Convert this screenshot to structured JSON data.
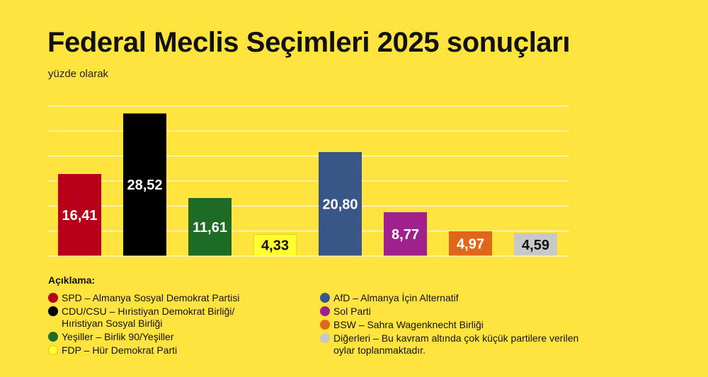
{
  "title": "Federal Meclis Seçimleri 2025 sonuçları",
  "subtitle": "yüzde olarak",
  "chart_data": {
    "type": "bar",
    "categories": [
      "SPD",
      "CDU/CSU",
      "Yeşiller",
      "FDP",
      "AfD",
      "Sol Parti",
      "BSW",
      "Diğerleri"
    ],
    "values": [
      16.41,
      28.52,
      11.61,
      4.33,
      20.8,
      8.77,
      4.97,
      4.59
    ],
    "data_labels": [
      "16,41",
      "28,52",
      "11,61",
      "4,33",
      "20,80",
      "8,77",
      "4,97",
      "4,59"
    ],
    "colors": [
      "#b8001a",
      "#000000",
      "#1e6b25",
      "#ffff33",
      "#385686",
      "#a0218e",
      "#e0671a",
      "#c8c8c8"
    ],
    "label_colors": [
      "#ffffff",
      "#ffffff",
      "#ffffff",
      "#111111",
      "#ffffff",
      "#ffffff",
      "#ffffff",
      "#111111"
    ],
    "ylim": [
      0,
      30
    ],
    "grid": true
  },
  "legend": {
    "title": "Açıklama:",
    "left": [
      {
        "text": "SPD – Almanya Sosyal Demokrat Partisi",
        "color": "#b8001a"
      },
      {
        "text": "CDU/CSU – Hıristiyan Demokrat Birliği/\n                       Hıristiyan Sosyal Birliği",
        "color": "#000000"
      },
      {
        "text": "Yeşiller – Birlik 90/Yeşiller",
        "color": "#1e6b25"
      },
      {
        "text": "FDP – Hür Demokrat Parti",
        "color": "#ffff33"
      }
    ],
    "right": [
      {
        "text": "AfD – Almanya İçin Alternatif",
        "color": "#385686"
      },
      {
        "text": "Sol Parti",
        "color": "#a0218e"
      },
      {
        "text": "BSW – Sahra Wagenknecht Birliği",
        "color": "#e0671a"
      },
      {
        "text": "Diğerleri – Bu kavram altında çok küçük partilere verilen\noylar toplanmaktadır.",
        "color": "#c8c8c8"
      }
    ]
  }
}
